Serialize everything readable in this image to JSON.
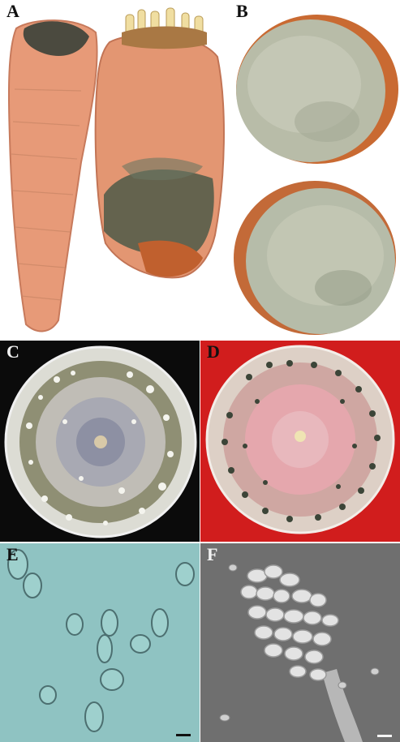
{
  "figure": {
    "panels": [
      {
        "id": "A",
        "label": "A",
        "subject": "carrots-with-mold"
      },
      {
        "id": "B",
        "label": "B",
        "subject": "carrot-slices-with-mycelium"
      },
      {
        "id": "C",
        "label": "C",
        "subject": "culture-plate-dark-background"
      },
      {
        "id": "D",
        "label": "D",
        "subject": "culture-plate-red-background"
      },
      {
        "id": "E",
        "label": "E",
        "subject": "conidia-light-microscopy"
      },
      {
        "id": "F",
        "label": "F",
        "subject": "conidia-sem"
      }
    ]
  },
  "colors": {
    "carrot": "#e29a73",
    "mold_dark": "#3c4a3a",
    "mycelium": "#b9bdaa",
    "background_C": "#0b0b0b",
    "background_D": "#d11d1d",
    "background_E": "#8fc3c2",
    "background_F": "#6f6f6f"
  }
}
